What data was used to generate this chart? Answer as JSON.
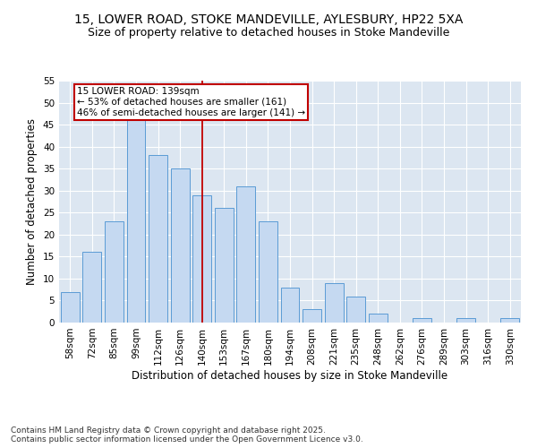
{
  "title_line1": "15, LOWER ROAD, STOKE MANDEVILLE, AYLESBURY, HP22 5XA",
  "title_line2": "Size of property relative to detached houses in Stoke Mandeville",
  "xlabel": "Distribution of detached houses by size in Stoke Mandeville",
  "ylabel": "Number of detached properties",
  "categories": [
    "58sqm",
    "72sqm",
    "85sqm",
    "99sqm",
    "112sqm",
    "126sqm",
    "140sqm",
    "153sqm",
    "167sqm",
    "180sqm",
    "194sqm",
    "208sqm",
    "221sqm",
    "235sqm",
    "248sqm",
    "262sqm",
    "276sqm",
    "289sqm",
    "303sqm",
    "316sqm",
    "330sqm"
  ],
  "values": [
    7,
    16,
    23,
    46,
    38,
    35,
    29,
    26,
    31,
    23,
    8,
    3,
    9,
    6,
    2,
    0,
    1,
    0,
    1,
    0,
    1
  ],
  "bar_color": "#c5d9f1",
  "bar_edge_color": "#5b9bd5",
  "vline_x": 6,
  "vline_color": "#c00000",
  "annotation_text": "15 LOWER ROAD: 139sqm\n← 53% of detached houses are smaller (161)\n46% of semi-detached houses are larger (141) →",
  "annotation_box_color": "#ffffff",
  "annotation_box_edge": "#c00000",
  "ylim": [
    0,
    55
  ],
  "yticks": [
    0,
    5,
    10,
    15,
    20,
    25,
    30,
    35,
    40,
    45,
    50,
    55
  ],
  "background_color": "#dce6f1",
  "footer_text": "Contains HM Land Registry data © Crown copyright and database right 2025.\nContains public sector information licensed under the Open Government Licence v3.0.",
  "title_fontsize": 10,
  "subtitle_fontsize": 9,
  "axis_label_fontsize": 8.5,
  "tick_fontsize": 7.5,
  "annotation_fontsize": 7.5,
  "footer_fontsize": 6.5
}
